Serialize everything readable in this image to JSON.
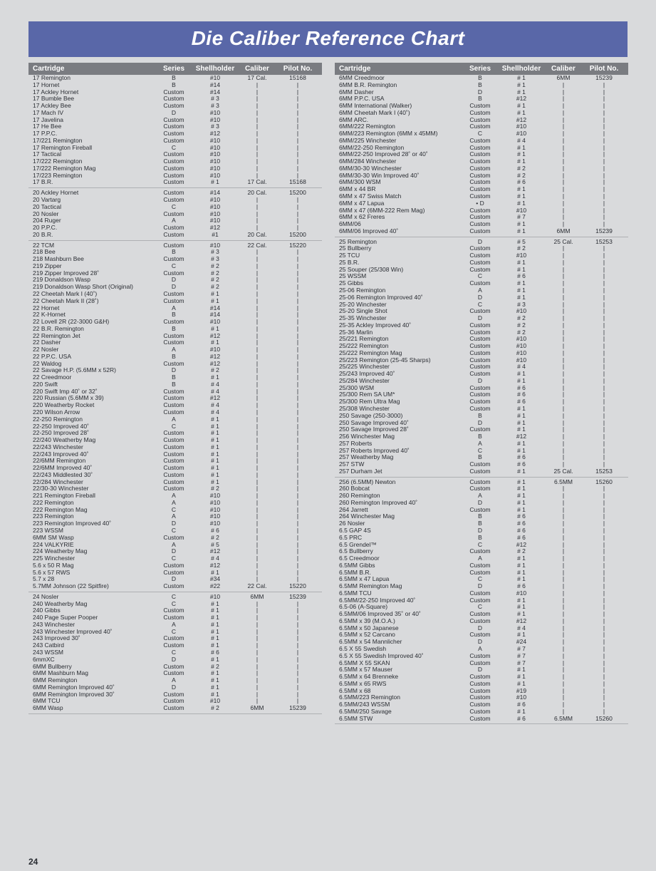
{
  "title": "Die Caliber Reference Chart",
  "page_number": "24",
  "headers": [
    "Cartridge",
    "Series",
    "Shellholder",
    "Caliber",
    "Pilot No."
  ],
  "colors": {
    "title_bg": "#5967a8",
    "title_fg": "#ffffff",
    "hdr_bg": "#7a7c81",
    "hdr_fg": "#ffffff",
    "page_bg": "#d9dadc",
    "text": "#2a2d33",
    "divider": "#aeb0b3"
  },
  "left_groups": [
    {
      "caliber": "17 Cal.",
      "pilot": "15168",
      "rows": [
        [
          "17 Remington",
          "B",
          "#10"
        ],
        [
          "17 Hornet",
          "B",
          "#14"
        ],
        [
          "17 Ackley Hornet",
          "Custom",
          "#14"
        ],
        [
          "17 Bumble Bee",
          "Custom",
          "# 3"
        ],
        [
          "17 Ackley Bee",
          "Custom",
          "# 3"
        ],
        [
          "17 Mach IV",
          "D",
          "#10"
        ],
        [
          "17 Javelina",
          "Custom",
          "#10"
        ],
        [
          "17 He Bee",
          "Custom",
          "# 3"
        ],
        [
          "17 P.P.C.",
          "Custom",
          "#12"
        ],
        [
          "17/221 Remington",
          "Custom",
          "#10"
        ],
        [
          "17 Remington Fireball",
          "C",
          "#10"
        ],
        [
          "17 Tactical",
          "Custom",
          "#10"
        ],
        [
          "17/222 Remington",
          "Custom",
          "#10"
        ],
        [
          "17/222 Remington Mag",
          "Custom",
          "#10"
        ],
        [
          "17/223 Remington",
          "Custom",
          "#10"
        ],
        [
          "17 B.R.",
          "Custom",
          "# 1"
        ]
      ]
    },
    {
      "caliber": "20 Cal.",
      "pilot": "15200",
      "rows": [
        [
          "20 Ackley Hornet",
          "Custom",
          "#14"
        ],
        [
          "20 Vartarg",
          "Custom",
          "#10"
        ],
        [
          "20 Tactical",
          "C",
          "#10"
        ],
        [
          "20 Nosler",
          "Custom",
          "#10"
        ],
        [
          "204 Ruger",
          "A",
          "#10"
        ],
        [
          "20 P.P.C.",
          "Custom",
          "#12"
        ],
        [
          "20 B.R.",
          "Custom",
          "#1"
        ]
      ]
    },
    {
      "caliber": "22 Cal.",
      "pilot": "15220",
      "rows": [
        [
          "22 TCM",
          "Custom",
          "#10"
        ],
        [
          "218 Bee",
          "B",
          "# 3"
        ],
        [
          "218 Mashburn Bee",
          "Custom",
          "# 3"
        ],
        [
          "219 Zipper",
          "C",
          "# 2"
        ],
        [
          "219 Zipper Improved 28˚",
          "Custom",
          "# 2"
        ],
        [
          "219 Donaldson Wasp",
          "D",
          "# 2"
        ],
        [
          "219 Donaldson Wasp Short (Original)",
          "D",
          "# 2"
        ],
        [
          "22 Cheetah Mark I (40˚)",
          "Custom",
          "# 1"
        ],
        [
          "22 Cheetah Mark II (28˚)",
          "Custom",
          "# 1"
        ],
        [
          "22 Hornet",
          "A",
          "#14"
        ],
        [
          "22 K-Hornet",
          "B",
          "#14"
        ],
        [
          "22 Lovell 2R (22-3000 G&H)",
          "Custom",
          "#10"
        ],
        [
          "22 B.R. Remington",
          "B",
          "# 1"
        ],
        [
          "22 Remington Jet",
          "Custom",
          "#12"
        ],
        [
          "22 Dasher",
          "Custom",
          "# 1"
        ],
        [
          "22 Nosler",
          "A",
          "#10"
        ],
        [
          "22 P.P.C. USA",
          "B",
          "#12"
        ],
        [
          "22 Waldog",
          "Custom",
          "#12"
        ],
        [
          "22 Savage H.P. (5.6MM x 52R)",
          "D",
          "# 2"
        ],
        [
          "22 Creedmoor",
          "B",
          "# 1"
        ],
        [
          "220 Swift",
          "B",
          "# 4"
        ],
        [
          "220 Swift Imp 40˚ or 32˚",
          "Custom",
          "# 4"
        ],
        [
          "220 Russian (5.6MM x 39)",
          "Custom",
          "#12"
        ],
        [
          "220 Weatherby Rocket",
          "Custom",
          "# 4"
        ],
        [
          "220 Wilson Arrow",
          "Custom",
          "# 4"
        ],
        [
          "22-250 Remington",
          "A",
          "# 1"
        ],
        [
          "22-250 Improved 40˚",
          "C",
          "# 1"
        ],
        [
          "22-250 Improved 28˚",
          "Custom",
          "# 1"
        ],
        [
          "22/240 Weatherby Mag",
          "Custom",
          "# 1"
        ],
        [
          "22/243 Winchester",
          "Custom",
          "# 1"
        ],
        [
          "22/243 Improved 40˚",
          "Custom",
          "# 1"
        ],
        [
          "22/6MM Remington",
          "Custom",
          "# 1"
        ],
        [
          "22/6MM Improved 40˚",
          "Custom",
          "# 1"
        ],
        [
          "22/243 Middlested 30˚",
          "Custom",
          "# 1"
        ],
        [
          "22/284 Winchester",
          "Custom",
          "# 1"
        ],
        [
          "22/30-30 Winchester",
          "Custom",
          "# 2"
        ],
        [
          "221 Remington Fireball",
          "A",
          "#10"
        ],
        [
          "222 Remington",
          "A",
          "#10"
        ],
        [
          "222 Remington Mag",
          "C",
          "#10"
        ],
        [
          "223 Remington",
          "A",
          "#10"
        ],
        [
          "223 Remington Improved 40˚",
          "D",
          "#10"
        ],
        [
          "223 WSSM",
          "C",
          "# 6"
        ],
        [
          "6MM SM Wasp",
          "Custom",
          "# 2"
        ],
        [
          "224 VALKYRIE",
          "A",
          "# 5"
        ],
        [
          "224 Weatherby Mag",
          "D",
          "#12"
        ],
        [
          "225 Winchester",
          "C",
          "# 4"
        ],
        [
          "5.6 x 50 R Mag",
          "Custom",
          "#12"
        ],
        [
          "5.6 x 57 RWS",
          "Custom",
          "# 1"
        ],
        [
          "5.7 x 28",
          "D",
          "#34"
        ],
        [
          "5.7MM Johnson (22 Spitfire)",
          "Custom",
          "#22"
        ]
      ]
    },
    {
      "caliber": "6MM",
      "pilot": "15239",
      "rows": [
        [
          "24 Nosler",
          "C",
          "#10"
        ],
        [
          "240 Weatherby Mag",
          "C",
          "# 1"
        ],
        [
          "240 Gibbs",
          "Custom",
          "# 1"
        ],
        [
          "240 Page Super Pooper",
          "Custom",
          "# 1"
        ],
        [
          "243 Winchester",
          "A",
          "# 1"
        ],
        [
          "243 Winchester Improved 40˚",
          "C",
          "# 1"
        ],
        [
          "243 Improved 30˚",
          "Custom",
          "# 1"
        ],
        [
          "243 Catbird",
          "Custom",
          "# 1"
        ],
        [
          "243 WSSM",
          "C",
          "# 6"
        ],
        [
          "6mmXC",
          "D",
          "# 1"
        ],
        [
          "6MM Bullberry",
          "Custom",
          "# 2"
        ],
        [
          "6MM Mashburn Mag",
          "Custom",
          "# 1"
        ],
        [
          "6MM Remington",
          "A",
          "# 1"
        ],
        [
          "6MM Remington Improved 40˚",
          "D",
          "# 1"
        ],
        [
          "6MM Remington Improved 30˚",
          "Custom",
          "# 1"
        ],
        [
          "6MM TCU",
          "Custom",
          "#10"
        ],
        [
          "6MM Wasp",
          "Custom",
          "# 2"
        ]
      ]
    }
  ],
  "right_groups": [
    {
      "caliber": "6MM",
      "pilot": "15239",
      "rows": [
        [
          "6MM  Creedmoor",
          "B",
          "# 1"
        ],
        [
          "6MM B.R. Remington",
          "B",
          "# 1"
        ],
        [
          "6MM Dasher",
          "D",
          "# 1"
        ],
        [
          "6MM P.P.C. USA",
          "B",
          "#12"
        ],
        [
          "6MM International (Walker)",
          "Custom",
          "# 1"
        ],
        [
          "6MM Cheetah Mark I (40˚)",
          "Custom",
          "# 1"
        ],
        [
          "6MM ARC.",
          "Custom",
          "#12"
        ],
        [
          "6MM/222 Remington",
          "Custom",
          "#10"
        ],
        [
          "6MM/223 Remington (6MM x 45MM)",
          "C",
          "#10"
        ],
        [
          "6MM/225 Winchester",
          "Custom",
          "# 4"
        ],
        [
          "6MM/22-250 Remington",
          "Custom",
          "# 1"
        ],
        [
          "6MM/22-250 Improved 28˚ or 40˚",
          "Custom",
          "# 1"
        ],
        [
          "6MM/284 Winchester",
          "Custom",
          "# 1"
        ],
        [
          "6MM/30-30 Winchester",
          "Custom",
          "# 2"
        ],
        [
          "6MM/30-30 Win Improved 40˚",
          "Custom",
          "# 2"
        ],
        [
          "6MM/300 WSM",
          "Custom",
          "# 6"
        ],
        [
          "6MM x 44 BR",
          "Custom",
          "# 1"
        ],
        [
          "6MM x 47 Swiss Match",
          "Custom",
          "# 1"
        ],
        [
          "6MM x 47 Lapua",
          "• D",
          "# 1"
        ],
        [
          "6MM x 47 (6MM-222 Rem Mag)",
          "Custom",
          "#10"
        ],
        [
          "6MM x 62 Freres",
          "Custom",
          "# 7"
        ],
        [
          "6MM/06",
          "Custom",
          "# 1"
        ],
        [
          "6MM/06 Improved 40˚",
          "Custom",
          "# 1"
        ]
      ]
    },
    {
      "caliber": "25 Cal.",
      "pilot": "15253",
      "rows": [
        [
          "25 Remington",
          "D",
          "# 5"
        ],
        [
          "25 Bullberry",
          "Custom",
          "# 2"
        ],
        [
          "25 TCU",
          "Custom",
          "#10"
        ],
        [
          "25 B.R.",
          "Custom",
          "# 1"
        ],
        [
          "25 Souper (25/308 Win)",
          "Custom",
          "# 1"
        ],
        [
          "25 WSSM",
          "C",
          "# 6"
        ],
        [
          "25 Gibbs",
          "Custom",
          "# 1"
        ],
        [
          "25-06 Remington",
          "A",
          "# 1"
        ],
        [
          "25-06 Remington Improved 40˚",
          "D",
          "# 1"
        ],
        [
          "25-20 Winchester",
          "C",
          "# 3"
        ],
        [
          "25-20 Single Shot",
          "Custom",
          "#10"
        ],
        [
          "25-35 Winchester",
          "D",
          "# 2"
        ],
        [
          "25-35 Ackley Improved 40˚",
          "Custom",
          "# 2"
        ],
        [
          "25-36 Marlin",
          "Custom",
          "# 2"
        ],
        [
          "25/221 Remington",
          "Custom",
          "#10"
        ],
        [
          "25/222 Remington",
          "Custom",
          "#10"
        ],
        [
          "25/222 Remington Mag",
          "Custom",
          "#10"
        ],
        [
          "25/223 Remington (25-45 Sharps)",
          "Custom",
          "#10"
        ],
        [
          "25/225 Winchester",
          "Custom",
          "# 4"
        ],
        [
          "25/243 Improved 40˚",
          "Custom",
          "# 1"
        ],
        [
          "25/284 Winchester",
          "D",
          "# 1"
        ],
        [
          "25/300 WSM",
          "Custom",
          "# 6"
        ],
        [
          "25/300 Rem SA UM*",
          "Custom",
          "# 6"
        ],
        [
          "25/300 Rem Ultra Mag",
          "Custom",
          "# 6"
        ],
        [
          "25/308 Winchester",
          "Custom",
          "# 1"
        ],
        [
          "250 Savage (250-3000)",
          "B",
          "# 1"
        ],
        [
          "250 Savage Improved 40˚",
          "D",
          "# 1"
        ],
        [
          "250 Savage Improved 28˚",
          "Custom",
          "# 1"
        ],
        [
          "256 Winchester Mag",
          "B",
          "#12"
        ],
        [
          "257 Roberts",
          "A",
          "# 1"
        ],
        [
          "257 Roberts Improved 40˚",
          "C",
          "# 1"
        ],
        [
          "257 Weatherby Mag",
          "B",
          "# 6"
        ],
        [
          "257 STW",
          "Custom",
          "# 6"
        ],
        [
          "257 Durham Jet",
          "Custom",
          "# 1"
        ]
      ]
    },
    {
      "caliber": "6.5MM",
      "pilot": "15260",
      "rows": [
        [
          "256 (6.5MM) Newton",
          "Custom",
          "# 1"
        ],
        [
          "260 Bobcat",
          "Custom",
          "# 1"
        ],
        [
          "260 Remington",
          "A",
          "# 1"
        ],
        [
          "260 Remington Improved 40˚",
          "D",
          "# 1"
        ],
        [
          "264 Jarrett",
          "Custom",
          "# 1"
        ],
        [
          "264 Winchester Mag",
          "B",
          "# 6"
        ],
        [
          "26 Nosler",
          "B",
          "# 6"
        ],
        [
          "6.5 GAP 4S",
          "D",
          "# 6"
        ],
        [
          "6.5 PRC",
          "B",
          "# 6"
        ],
        [
          "6.5 Grendel™",
          "C",
          "#12"
        ],
        [
          "6.5 Bullberry",
          "Custom",
          "# 2"
        ],
        [
          "6.5 Creedmoor",
          "A",
          "# 1"
        ],
        [
          "6.5MM Gibbs",
          "Custom",
          "# 1"
        ],
        [
          "6.5MM B.R.",
          "Custom",
          "# 1"
        ],
        [
          "6.5MM x 47 Lapua",
          "C",
          "# 1"
        ],
        [
          "6.5MM Remington Mag",
          "D",
          "# 6"
        ],
        [
          "6.5MM TCU",
          "Custom",
          "#10"
        ],
        [
          "6.5MM/22-250 Improved 40˚",
          "Custom",
          "# 1"
        ],
        [
          "6.5-06 (A-Square)",
          "C",
          "# 1"
        ],
        [
          "6.5MM/06 Improved 35˚ or 40˚",
          "Custom",
          "# 1"
        ],
        [
          "6.5MM x 39 (M.O.A.)",
          "Custom",
          "#12"
        ],
        [
          "6.5MM x 50 Japanese",
          "D",
          "# 4"
        ],
        [
          "6.5MM x 52 Carcano",
          "Custom",
          "# 1"
        ],
        [
          "6.5MM x 54 Mannlicher",
          "D",
          "#24"
        ],
        [
          "6.5 X 55 Swedish",
          "A",
          "# 7"
        ],
        [
          "6.5 X 55 Swedish Improved 40˚",
          "Custom",
          "# 7"
        ],
        [
          "6.5MM X 55 SKAN",
          "Custom",
          "# 7"
        ],
        [
          "6.5MM x 57 Mauser",
          "D",
          "# 1"
        ],
        [
          "6.5MM x 64 Brenneke",
          "Custom",
          "# 1"
        ],
        [
          "6.5MM x 65 RWS",
          "Custom",
          "# 1"
        ],
        [
          "6.5MM x 68",
          "Custom",
          "#19"
        ],
        [
          "6.5MM/223 Remington",
          "Custom",
          "#10"
        ],
        [
          "6.5MM/243 WSSM",
          "Custom",
          "# 6"
        ],
        [
          "6.5MM/250 Savage",
          "Custom",
          "# 1"
        ],
        [
          "6.5MM STW",
          "Custom",
          "# 6"
        ]
      ]
    }
  ]
}
